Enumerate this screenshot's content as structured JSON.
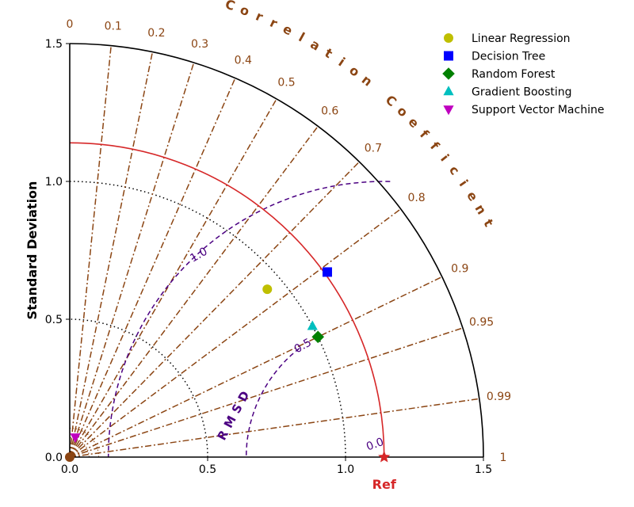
{
  "chart_data": {
    "type": "taylor_diagram",
    "ylabel": "Standard Deviation",
    "xlabel": "Ref",
    "corr_label": "Correlation Coefficient",
    "rmsd_label": "RMSD",
    "std_range": [
      0,
      1.5
    ],
    "std_ticks": [
      "0.0",
      "0.5",
      "1.0",
      "1.5"
    ],
    "std_tick_values": [
      0,
      0.5,
      1.0,
      1.5
    ],
    "ref_std": 1.14,
    "corr_ticks": [
      {
        "value": 0,
        "label": "0"
      },
      {
        "value": 0.1,
        "label": "0.1"
      },
      {
        "value": 0.2,
        "label": "0.2"
      },
      {
        "value": 0.3,
        "label": "0.3"
      },
      {
        "value": 0.4,
        "label": "0.4"
      },
      {
        "value": 0.5,
        "label": "0.5"
      },
      {
        "value": 0.6,
        "label": "0.6"
      },
      {
        "value": 0.7,
        "label": "0.7"
      },
      {
        "value": 0.8,
        "label": "0.8"
      },
      {
        "value": 0.9,
        "label": "0.9"
      },
      {
        "value": 0.95,
        "label": "0.95"
      },
      {
        "value": 0.99,
        "label": "0.99"
      },
      {
        "value": 1,
        "label": "1"
      }
    ],
    "rmsd_contours": [
      {
        "value": 0.5,
        "label": "0.5"
      },
      {
        "value": 1.0,
        "label": "1.0"
      }
    ],
    "rmsd_zero_label": "0.0",
    "models": [
      {
        "name": "Linear Regression",
        "std": 0.94,
        "corr": 0.762,
        "color": "#bfbf00",
        "marker": "circle"
      },
      {
        "name": "Decision Tree",
        "std": 1.15,
        "corr": 0.812,
        "color": "#0000ff",
        "marker": "square"
      },
      {
        "name": "Random Forest",
        "std": 1.0,
        "corr": 0.9,
        "color": "#008000",
        "marker": "diamond"
      },
      {
        "name": "Gradient Boosting",
        "std": 1.0,
        "corr": 0.88,
        "color": "#00bfbf",
        "marker": "triangle-up"
      },
      {
        "name": "Support Vector Machine",
        "std": 0.075,
        "corr": 0.27,
        "color": "#bf00bf",
        "marker": "triangle-down"
      }
    ],
    "colors": {
      "corr_lines": "#8b4513",
      "ref_arc": "#d62728",
      "rmsd": "#4b0082",
      "outer_arc": "#000000",
      "grid": "#000000"
    },
    "legend_position": "top-right"
  }
}
